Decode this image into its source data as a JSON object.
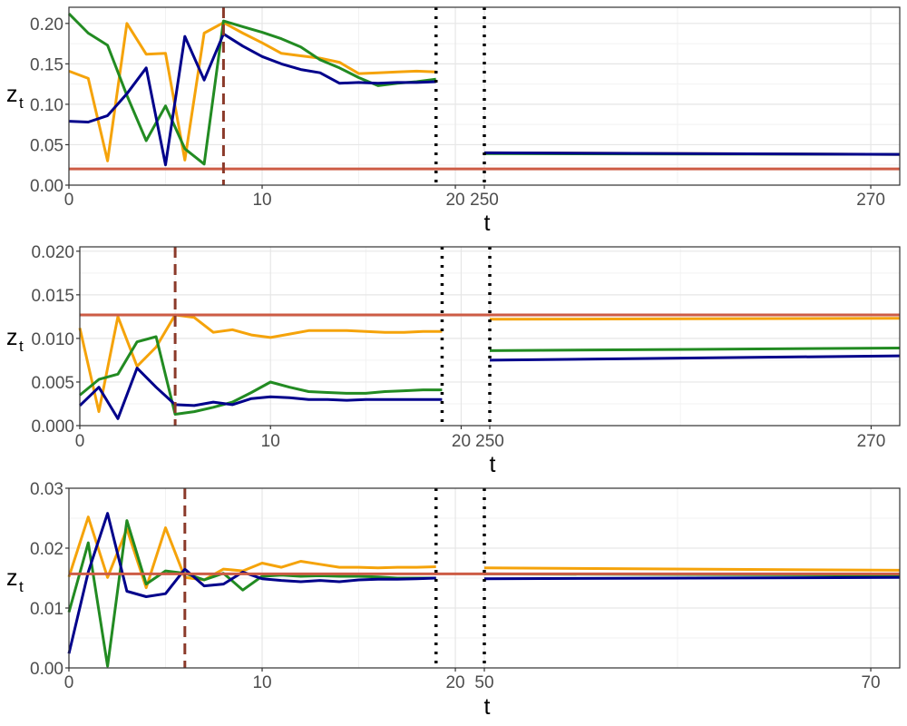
{
  "colors": {
    "orange": "#f5a30a",
    "green": "#228b22",
    "navy": "#00008b",
    "red_line": "#cd5c45",
    "dashed_marker": "#8b3a2a",
    "dotted_marker": "#000000"
  },
  "chart_data": [
    {
      "type": "line",
      "xlabel": "t",
      "ylabel": "z",
      "ylabel_subscript": "t",
      "grid": true,
      "ylim": [
        0,
        0.22
      ],
      "yticks": [
        "0.00",
        "0.05",
        "0.10",
        "0.15",
        "0.20"
      ],
      "ytick_values": [
        0,
        0.05,
        0.1,
        0.15,
        0.2
      ],
      "x_segments": [
        {
          "xlim": [
            0,
            21.5
          ],
          "ticks": [
            {
              "value": 0,
              "label": "0"
            },
            {
              "value": 10,
              "label": "10"
            },
            {
              "value": 20,
              "label": "20"
            }
          ]
        },
        {
          "xlim": [
            250,
            271.5
          ],
          "ticks": [
            {
              "value": 250,
              "label": "250"
            },
            {
              "value": 270,
              "label": "270"
            }
          ]
        }
      ],
      "reference_line": 0.02,
      "dashed_vline": 8,
      "dotted_vlines": [
        19,
        250
      ],
      "series": [
        {
          "color": "orange",
          "segments": [
            {
              "x": [
                0,
                1,
                2,
                3,
                4,
                5,
                6,
                7,
                8,
                9,
                10,
                11,
                12,
                13,
                14,
                15,
                16,
                17,
                18,
                19
              ],
              "y": [
                0.141,
                0.132,
                0.03,
                0.2,
                0.162,
                0.163,
                0.031,
                0.188,
                0.201,
                0.188,
                0.176,
                0.163,
                0.16,
                0.157,
                0.152,
                0.138,
                0.139,
                0.14,
                0.141,
                0.14
              ]
            },
            {
              "x": [
                250,
                271.5
              ],
              "y": [
                0.04,
                0.038
              ]
            }
          ]
        },
        {
          "color": "green",
          "segments": [
            {
              "x": [
                0,
                1,
                2,
                3,
                4,
                5,
                6,
                7,
                8,
                9,
                10,
                11,
                12,
                13,
                14,
                15,
                16,
                17,
                18,
                19
              ],
              "y": [
                0.212,
                0.188,
                0.173,
                0.111,
                0.055,
                0.098,
                0.045,
                0.026,
                0.203,
                0.196,
                0.189,
                0.181,
                0.171,
                0.155,
                0.145,
                0.133,
                0.123,
                0.126,
                0.128,
                0.131
              ]
            },
            {
              "x": [
                250,
                271.5
              ],
              "y": [
                0.039,
                0.038
              ]
            }
          ]
        },
        {
          "color": "navy",
          "segments": [
            {
              "x": [
                0,
                1,
                2,
                3,
                4,
                5,
                6,
                7,
                8,
                9,
                10,
                11,
                12,
                13,
                14,
                15,
                16,
                17,
                18,
                19
              ],
              "y": [
                0.079,
                0.078,
                0.086,
                0.113,
                0.145,
                0.025,
                0.184,
                0.13,
                0.187,
                0.172,
                0.159,
                0.15,
                0.143,
                0.139,
                0.126,
                0.127,
                0.126,
                0.127,
                0.127,
                0.128
              ]
            },
            {
              "x": [
                250,
                271.5
              ],
              "y": [
                0.04,
                0.038
              ]
            }
          ]
        }
      ]
    },
    {
      "type": "line",
      "xlabel": "t",
      "ylabel": "z",
      "ylabel_subscript": "t",
      "grid": true,
      "ylim": [
        0,
        0.0205
      ],
      "yticks": [
        "0.000",
        "0.005",
        "0.010",
        "0.015",
        "0.020"
      ],
      "ytick_values": [
        0,
        0.005,
        0.01,
        0.015,
        0.02
      ],
      "x_segments": [
        {
          "xlim": [
            0,
            21.5
          ],
          "ticks": [
            {
              "value": 0,
              "label": "0"
            },
            {
              "value": 10,
              "label": "10"
            },
            {
              "value": 20,
              "label": "20"
            }
          ]
        },
        {
          "xlim": [
            250,
            271.5
          ],
          "ticks": [
            {
              "value": 250,
              "label": "250"
            },
            {
              "value": 270,
              "label": "270"
            }
          ]
        }
      ],
      "reference_line": 0.0127,
      "dashed_vline": 5,
      "dotted_vlines": [
        19,
        250
      ],
      "series": [
        {
          "color": "orange",
          "segments": [
            {
              "x": [
                0,
                1,
                2,
                3,
                4,
                5,
                6,
                7,
                8,
                9,
                10,
                11,
                12,
                13,
                14,
                15,
                16,
                17,
                18,
                19
              ],
              "y": [
                0.0112,
                0.0016,
                0.0125,
                0.0068,
                0.009,
                0.0127,
                0.0124,
                0.0107,
                0.011,
                0.0104,
                0.0101,
                0.0105,
                0.0109,
                0.0109,
                0.0109,
                0.0108,
                0.0107,
                0.0107,
                0.0108,
                0.0108
              ]
            },
            {
              "x": [
                250,
                271.5
              ],
              "y": [
                0.0122,
                0.0123
              ]
            }
          ]
        },
        {
          "color": "green",
          "segments": [
            {
              "x": [
                0,
                1,
                2,
                3,
                4,
                5,
                6,
                7,
                8,
                9,
                10,
                11,
                12,
                13,
                14,
                15,
                16,
                17,
                18,
                19
              ],
              "y": [
                0.0035,
                0.0053,
                0.0059,
                0.0096,
                0.0102,
                0.0013,
                0.0016,
                0.0021,
                0.0027,
                0.0038,
                0.005,
                0.0044,
                0.0039,
                0.0038,
                0.0037,
                0.0037,
                0.0039,
                0.004,
                0.0041,
                0.0041
              ]
            },
            {
              "x": [
                250,
                271.5
              ],
              "y": [
                0.0086,
                0.0089
              ]
            }
          ]
        },
        {
          "color": "navy",
          "segments": [
            {
              "x": [
                0,
                1,
                2,
                3,
                4,
                5,
                6,
                7,
                8,
                9,
                10,
                11,
                12,
                13,
                14,
                15,
                16,
                17,
                18,
                19
              ],
              "y": [
                0.0023,
                0.0044,
                0.0008,
                0.0066,
                0.0044,
                0.0024,
                0.0023,
                0.0027,
                0.0024,
                0.0031,
                0.0033,
                0.0032,
                0.003,
                0.003,
                0.0029,
                0.003,
                0.003,
                0.003,
                0.003,
                0.003
              ]
            },
            {
              "x": [
                250,
                271.5
              ],
              "y": [
                0.0075,
                0.008
              ]
            }
          ]
        }
      ]
    },
    {
      "type": "line",
      "xlabel": "t",
      "ylabel": "z",
      "ylabel_subscript": "t",
      "grid": true,
      "ylim": [
        0,
        0.03
      ],
      "yticks": [
        "0.00",
        "0.01",
        "0.02",
        "0.03"
      ],
      "ytick_values": [
        0,
        0.01,
        0.02,
        0.03
      ],
      "x_segments": [
        {
          "xlim": [
            0,
            21.5
          ],
          "ticks": [
            {
              "value": 0,
              "label": "0"
            },
            {
              "value": 10,
              "label": "10"
            },
            {
              "value": 20,
              "label": "20"
            }
          ]
        },
        {
          "xlim": [
            50,
            71.5
          ],
          "ticks": [
            {
              "value": 50,
              "label": "50"
            },
            {
              "value": 70,
              "label": "70"
            }
          ]
        }
      ],
      "reference_line": 0.0157,
      "dashed_vline": 6,
      "dotted_vlines": [
        19,
        50
      ],
      "series": [
        {
          "color": "orange",
          "segments": [
            {
              "x": [
                0,
                1,
                2,
                3,
                4,
                5,
                6,
                7,
                8,
                9,
                10,
                11,
                12,
                13,
                14,
                15,
                16,
                17,
                18,
                19
              ],
              "y": [
                0.0152,
                0.0252,
                0.0151,
                0.0232,
                0.0134,
                0.0234,
                0.0151,
                0.0147,
                0.0165,
                0.0162,
                0.0175,
                0.0168,
                0.0178,
                0.0173,
                0.0168,
                0.0168,
                0.0167,
                0.0168,
                0.0168,
                0.0169
              ]
            },
            {
              "x": [
                50,
                71.5
              ],
              "y": [
                0.0167,
                0.0163
              ]
            }
          ]
        },
        {
          "color": "green",
          "segments": [
            {
              "x": [
                0,
                1,
                2,
                3,
                4,
                5,
                6,
                7,
                8,
                9,
                10,
                11,
                12,
                13,
                14,
                15,
                16,
                17,
                18,
                19
              ],
              "y": [
                0.0093,
                0.0209,
                0.0003,
                0.0246,
                0.014,
                0.0162,
                0.0158,
                0.0147,
                0.0158,
                0.013,
                0.0153,
                0.0155,
                0.0153,
                0.0154,
                0.0153,
                0.0153,
                0.0152,
                0.015,
                0.015,
                0.015
              ]
            },
            {
              "x": [
                50,
                71.5
              ],
              "y": [
                0.0157,
                0.0155
              ]
            }
          ]
        },
        {
          "color": "navy",
          "segments": [
            {
              "x": [
                0,
                1,
                2,
                3,
                4,
                5,
                6,
                7,
                8,
                9,
                10,
                11,
                12,
                13,
                14,
                15,
                16,
                17,
                18,
                19
              ],
              "y": [
                0.0024,
                0.016,
                0.0258,
                0.0128,
                0.0119,
                0.0124,
                0.0165,
                0.0137,
                0.014,
                0.016,
                0.0149,
                0.0146,
                0.0144,
                0.0146,
                0.0144,
                0.0147,
                0.0148,
                0.0148,
                0.0149,
                0.015
              ]
            },
            {
              "x": [
                50,
                71.5
              ],
              "y": [
                0.0149,
                0.0151
              ]
            }
          ]
        }
      ]
    }
  ]
}
